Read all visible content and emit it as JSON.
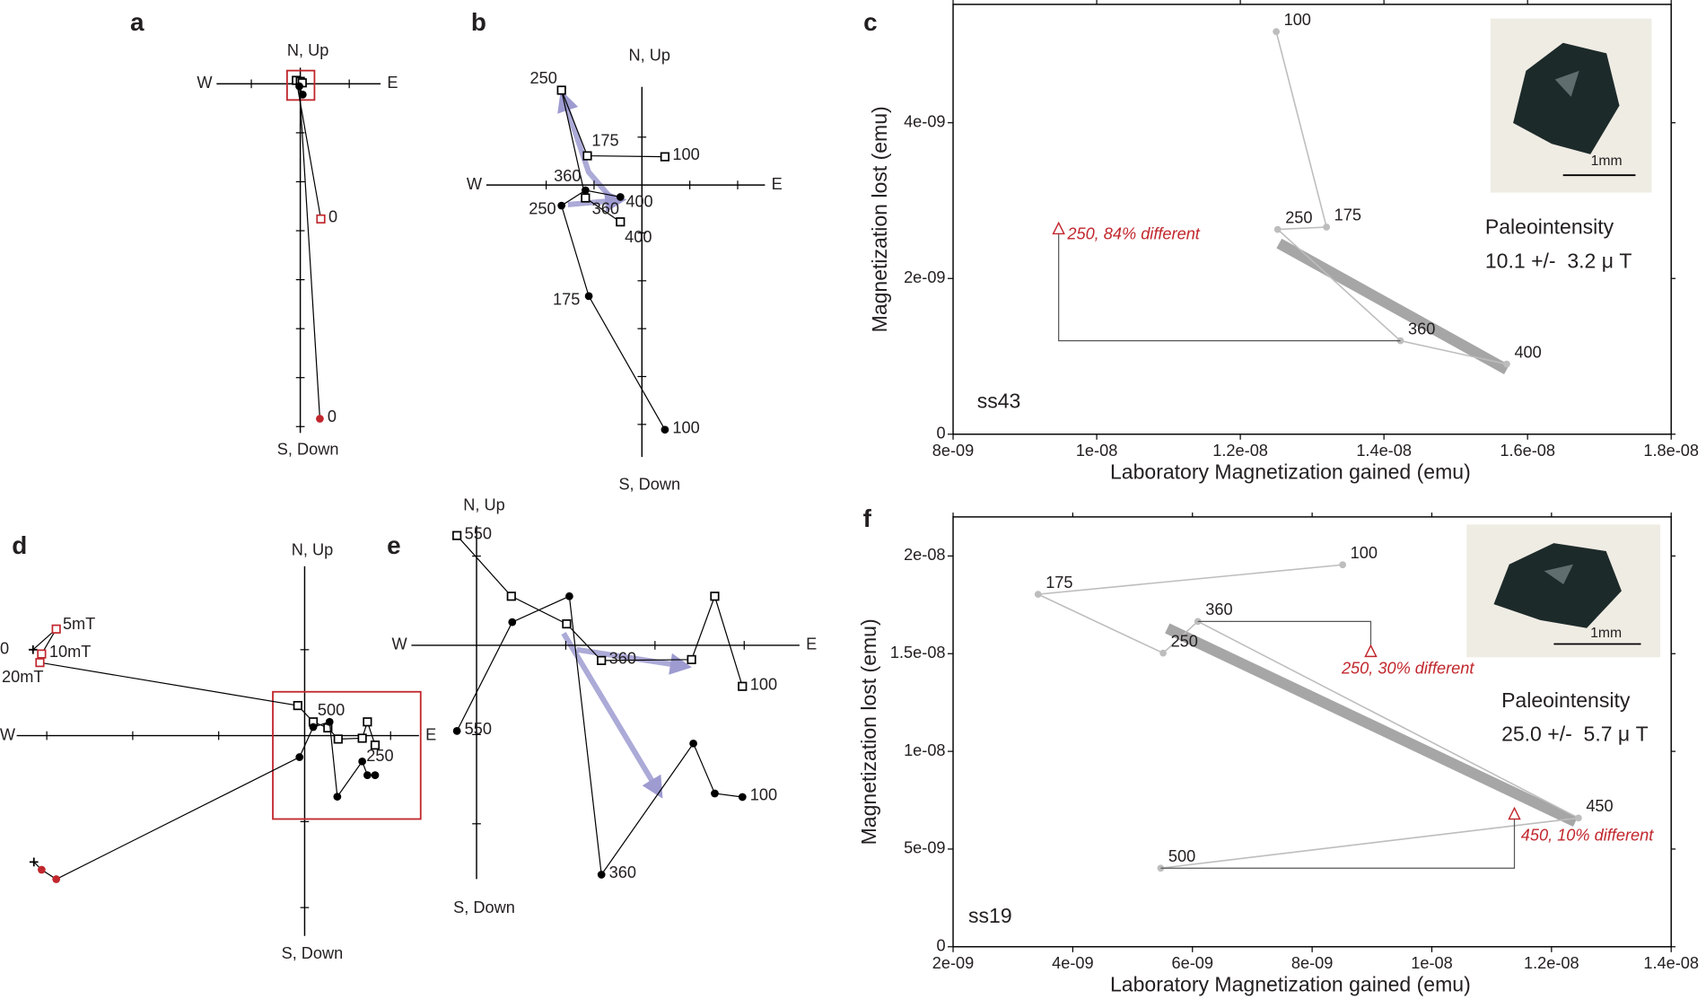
{
  "chart_data": [
    {
      "type": "zijderveld",
      "panel": "a",
      "north_label": "N, Up",
      "south_label": "S, Down",
      "west_label": "W",
      "east_label": "E",
      "xlim": [
        -1.71,
        1.64
      ],
      "ylim": [
        -7.13,
        0.33
      ],
      "xticks": [
        -1,
        1
      ],
      "yticks": [
        -1,
        -2,
        -3,
        -4,
        -5,
        -6,
        -7
      ],
      "zoom_box": {
        "xlim": [
          -0.27,
          0.29
        ],
        "ylim": [
          -0.33,
          0.27
        ],
        "color": "#c1272d"
      },
      "horizontal": {
        "marker": "square",
        "x": [
          0.42,
          -0.08,
          0.0,
          0.04
        ],
        "y": [
          -2.76,
          0.07,
          0.05,
          0.02
        ],
        "colors": [
          "#c1272d",
          "#000000",
          "#000000",
          "#000000"
        ],
        "labels": [
          0,
          null,
          null,
          null
        ]
      },
      "vertical": {
        "marker": "circle",
        "x": [
          0.4,
          -0.02,
          0.05
        ],
        "y": [
          -6.84,
          -0.05,
          -0.22
        ],
        "colors": [
          "#c1272d",
          "#000000",
          "#000000"
        ],
        "labels": [
          0,
          null,
          null
        ]
      }
    },
    {
      "type": "zijderveld",
      "panel": "b",
      "north_label": "N, Up",
      "south_label": "S, Down",
      "west_label": "W",
      "east_label": "E",
      "xlim": [
        -3.25,
        2.57
      ],
      "ylim": [
        -5.68,
        2.05
      ],
      "xticks": [
        -2,
        -1,
        1,
        2
      ],
      "yticks": [
        1,
        -1,
        -2,
        -3,
        -4,
        -5
      ],
      "horizontal": {
        "marker": "square",
        "x": [
          0.48,
          -1.14,
          -1.68,
          -1.18,
          -0.45
        ],
        "y": [
          0.59,
          0.61,
          1.98,
          -0.27,
          -0.77
        ],
        "colors": [
          "#000000",
          "#000000",
          "#000000",
          "#000000",
          "#000000"
        ],
        "labels": [
          100,
          175,
          250,
          360,
          400
        ]
      },
      "vertical": {
        "marker": "circle",
        "x": [
          0.48,
          -1.11,
          -1.68,
          -1.18,
          -0.45
        ],
        "y": [
          -5.11,
          -2.32,
          -0.43,
          -0.11,
          -0.25
        ],
        "colors": [
          "#000000",
          "#000000",
          "#000000",
          "#000000",
          "#000000"
        ],
        "labels": [
          100,
          175,
          250,
          360,
          400
        ]
      }
    },
    {
      "type": "arai",
      "panel": "c",
      "x_label": "Laboratory Magnetization gained (emu)",
      "y_label": "Magnetization lost (emu)",
      "xlim": [
        8e-09,
        1.8e-08
      ],
      "ylim": [
        0,
        5.52e-09
      ],
      "xticks": [
        {
          "value": 8e-09,
          "label": "8e-09"
        },
        {
          "value": 1e-08,
          "label": "1e-08"
        },
        {
          "value": 1.2e-08,
          "label": "1.2e-08"
        },
        {
          "value": 1.4e-08,
          "label": "1.4e-08"
        },
        {
          "value": 1.6e-08,
          "label": "1.6e-08"
        },
        {
          "value": 1.8e-08,
          "label": "1.8e-08"
        }
      ],
      "yticks": [
        0,
        {
          "value": 2e-09,
          "label": "2e-09"
        },
        {
          "value": 4e-09,
          "label": "4e-09"
        }
      ],
      "x": [
        1.25e-08,
        1.32e-08,
        1.252e-08,
        1.423e-08,
        1.571e-08
      ],
      "values": [
        5.17e-09,
        2.66e-09,
        2.63e-09,
        1.2e-09,
        9e-10
      ],
      "labels": [
        100,
        175,
        250,
        360,
        400
      ],
      "color": "#bdbdbd",
      "fit": {
        "x": [
          1.254e-08,
          1.571e-08
        ],
        "values": [
          2.45e-09,
          8.3e-10
        ],
        "color": "#a6a6a6"
      },
      "checks": [
        {
          "label": "250, 84% different",
          "x": 9.47e-09,
          "y": 2.63e-09,
          "reference_step": 360
        }
      ],
      "check_color": "#c1272d",
      "sample": "ss43",
      "paleointensity_label": "Paleointensity",
      "paleointensity_value": "10.1 +/-  3.2 μ T",
      "inset_scale_label": "1mm"
    },
    {
      "type": "zijderveld",
      "panel": "d",
      "north_label": "N, Up",
      "south_label": "S, Down",
      "west_label": "W",
      "east_label": "E",
      "xlim": [
        -3.35,
        1.33
      ],
      "ylim": [
        -2.33,
        1.97
      ],
      "xticks": [
        -3,
        -2,
        -1,
        1
      ],
      "yticks": [
        1,
        -1,
        -2
      ],
      "zoom_box": {
        "xlim": [
          -0.37,
          1.35
        ],
        "ylim": [
          -0.97,
          0.51
        ],
        "color": "#c1272d"
      },
      "first_marker": "cross",
      "horizontal": {
        "marker": "square",
        "x": [
          -3.16,
          -2.89,
          -3.06,
          -3.08,
          -0.08,
          0.1,
          0.27,
          0.39,
          0.67,
          0.73,
          0.82
        ],
        "y": [
          1.0,
          1.24,
          0.95,
          0.85,
          0.35,
          0.16,
          0.09,
          -0.04,
          -0.03,
          0.16,
          -0.11
        ],
        "colors": [
          "#000000",
          "#c1272d",
          "#c1272d",
          "#c1272d",
          "#000000",
          "#000000",
          "#000000",
          "#000000",
          "#000000",
          "#000000",
          "#000000"
        ],
        "labels": [
          0,
          "5mT",
          "10mT",
          "20mT",
          null,
          500,
          null,
          null,
          null,
          null,
          250
        ]
      },
      "vertical": {
        "marker": "circle",
        "x": [
          -3.15,
          -3.06,
          -2.89,
          -0.06,
          0.1,
          0.29,
          0.38,
          0.67,
          0.73,
          0.82
        ],
        "y": [
          -1.47,
          -1.56,
          -1.67,
          -0.25,
          0.1,
          0.16,
          -0.71,
          -0.3,
          -0.46,
          -0.46
        ],
        "colors": [
          "#000000",
          "#c1272d",
          "#c1272d",
          "#000000",
          "#000000",
          "#000000",
          "#000000",
          "#000000",
          "#000000",
          "#000000"
        ],
        "labels": [
          null,
          null,
          null,
          null,
          null,
          null,
          null,
          null,
          null,
          null
        ]
      }
    },
    {
      "type": "zijderveld",
      "panel": "e",
      "north_label": "N, Up",
      "south_label": "S, Down",
      "west_label": "W",
      "east_label": "E",
      "xlim": [
        -0.73,
        3.62
      ],
      "ylim": [
        -2.62,
        1.34
      ],
      "xticks": [
        1,
        2,
        3
      ],
      "yticks": [
        1,
        -1,
        -2
      ],
      "horizontal": {
        "marker": "square",
        "x": [
          -0.22,
          0.39,
          1.01,
          1.4,
          2.41,
          2.67,
          2.98
        ],
        "y": [
          1.23,
          0.55,
          0.24,
          -0.17,
          -0.16,
          0.55,
          -0.46
        ],
        "colors": [
          "#000000",
          "#000000",
          "#000000",
          "#000000",
          "#000000",
          "#000000",
          "#000000"
        ],
        "labels": [
          550,
          null,
          null,
          360,
          null,
          null,
          100
        ]
      },
      "vertical": {
        "marker": "circle",
        "x": [
          -0.22,
          0.4,
          1.04,
          1.4,
          2.43,
          2.67,
          2.98
        ],
        "y": [
          -0.96,
          0.26,
          0.55,
          -2.57,
          -1.1,
          -1.66,
          -1.7
        ],
        "colors": [
          "#000000",
          "#000000",
          "#000000",
          "#000000",
          "#000000",
          "#000000",
          "#000000"
        ],
        "labels": [
          550,
          null,
          null,
          360,
          null,
          null,
          100
        ]
      }
    },
    {
      "type": "arai",
      "panel": "f",
      "x_label": "Laboratory Magnetization gained (emu)",
      "y_label": "Magnetization lost (emu)",
      "xlim": [
        2e-09,
        1.4e-08
      ],
      "ylim": [
        0,
        2.2e-08
      ],
      "xticks": [
        {
          "value": 2e-09,
          "label": "2e-09"
        },
        {
          "value": 4e-09,
          "label": "4e-09"
        },
        {
          "value": 6e-09,
          "label": "6e-09"
        },
        {
          "value": 8e-09,
          "label": "8e-09"
        },
        {
          "value": 1e-08,
          "label": "1e-08"
        },
        {
          "value": 1.2e-08,
          "label": "1.2e-08"
        },
        {
          "value": 1.4e-08,
          "label": "1.4e-08"
        }
      ],
      "yticks": [
        0,
        {
          "value": 5e-09,
          "label": "5e-09"
        },
        {
          "value": 1e-08,
          "label": "1e-08"
        },
        {
          "value": 1.5e-08,
          "label": "1.5e-08"
        },
        {
          "value": 2e-08,
          "label": "2e-08"
        }
      ],
      "x": [
        8.51e-09,
        3.42e-09,
        5.51e-09,
        6.09e-09,
        1.245e-08,
        5.47e-09
      ],
      "values": [
        1.955e-08,
        1.804e-08,
        1.503e-08,
        1.665e-08,
        6.59e-09,
        4.02e-09
      ],
      "labels": [
        100,
        175,
        250,
        360,
        450,
        500
      ],
      "color": "#bdbdbd",
      "fit": {
        "x": [
          5.58e-09,
          1.24e-08
        ],
        "values": [
          1.63e-08,
          6.4e-09
        ],
        "color": "#a6a6a6"
      },
      "checks": [
        {
          "label": "250, 30% different",
          "x": 8.98e-09,
          "y": 1.508e-08,
          "reference_step": 360
        },
        {
          "label": "450, 10% different",
          "x": 1.138e-08,
          "y": 6.76e-09,
          "reference_step": 500
        }
      ],
      "check_color": "#c1272d",
      "sample": "ss19",
      "paleointensity_label": "Paleointensity",
      "paleointensity_value": "25.0 +/-  5.7 μ T",
      "inset_scale_label": "1mm"
    }
  ]
}
